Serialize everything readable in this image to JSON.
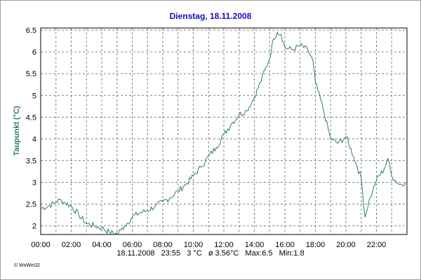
{
  "title": "Dienstag, 18.11.2008",
  "footer": {
    "date": "18.11.2008",
    "time": "23:55",
    "current": "3 °C",
    "average": "ø 3.56°C",
    "max": "Max:6.5",
    "min": "Min:1.8"
  },
  "credit": "© WsWin32",
  "colors": {
    "line": "#2f7a72",
    "title": "#1010c0",
    "ylabel": "#2c7a72",
    "grid": "#808080"
  },
  "chart_data": {
    "type": "line",
    "title": "Dienstag, 18.11.2008",
    "xlabel": "",
    "ylabel": "Taupunkt  (°C)",
    "xlim": [
      "00:00",
      "24:00"
    ],
    "ylim": [
      1.8,
      6.55
    ],
    "x_ticks": [
      "00:00",
      "02:00",
      "04:00",
      "06:00",
      "08:00",
      "10:00",
      "12:00",
      "14:00",
      "16:00",
      "18:00",
      "20:00",
      "22:00"
    ],
    "y_ticks": [
      2,
      2.5,
      3,
      3.5,
      4,
      4.5,
      5,
      5.5,
      6,
      6.5
    ],
    "grid": true,
    "series": [
      {
        "x": [
          "00:00",
          "00:30",
          "01:00",
          "01:15",
          "01:30",
          "02:00",
          "02:30",
          "03:00",
          "03:30",
          "04:00",
          "04:30",
          "05:00",
          "05:15",
          "05:30",
          "06:00",
          "06:30",
          "07:00",
          "07:30",
          "08:00",
          "08:30",
          "09:00",
          "09:30",
          "10:00",
          "10:30",
          "11:00",
          "11:30",
          "12:00",
          "12:30",
          "13:00",
          "13:30",
          "14:00",
          "14:30",
          "15:00",
          "15:15",
          "15:30",
          "15:45",
          "16:00",
          "16:30",
          "17:00",
          "17:30",
          "17:50",
          "18:00",
          "18:30",
          "19:00",
          "19:30",
          "20:00",
          "20:30",
          "21:00",
          "21:15",
          "21:30",
          "21:45",
          "22:00",
          "22:30",
          "22:45",
          "23:00",
          "23:30",
          "23:55"
        ],
        "y": [
          2.4,
          2.45,
          2.55,
          2.6,
          2.55,
          2.45,
          2.25,
          2.05,
          2.0,
          1.95,
          1.85,
          1.82,
          1.9,
          2.0,
          2.2,
          2.3,
          2.35,
          2.45,
          2.55,
          2.65,
          2.8,
          2.95,
          3.15,
          3.35,
          3.6,
          3.8,
          4.1,
          4.35,
          4.55,
          4.65,
          4.95,
          5.4,
          5.85,
          6.3,
          6.45,
          6.4,
          6.1,
          6.05,
          6.15,
          6.05,
          5.8,
          5.3,
          4.7,
          4.0,
          3.9,
          4.05,
          3.6,
          3.1,
          2.2,
          2.55,
          2.8,
          3.05,
          3.3,
          3.55,
          3.15,
          2.95,
          3.0
        ]
      }
    ]
  }
}
